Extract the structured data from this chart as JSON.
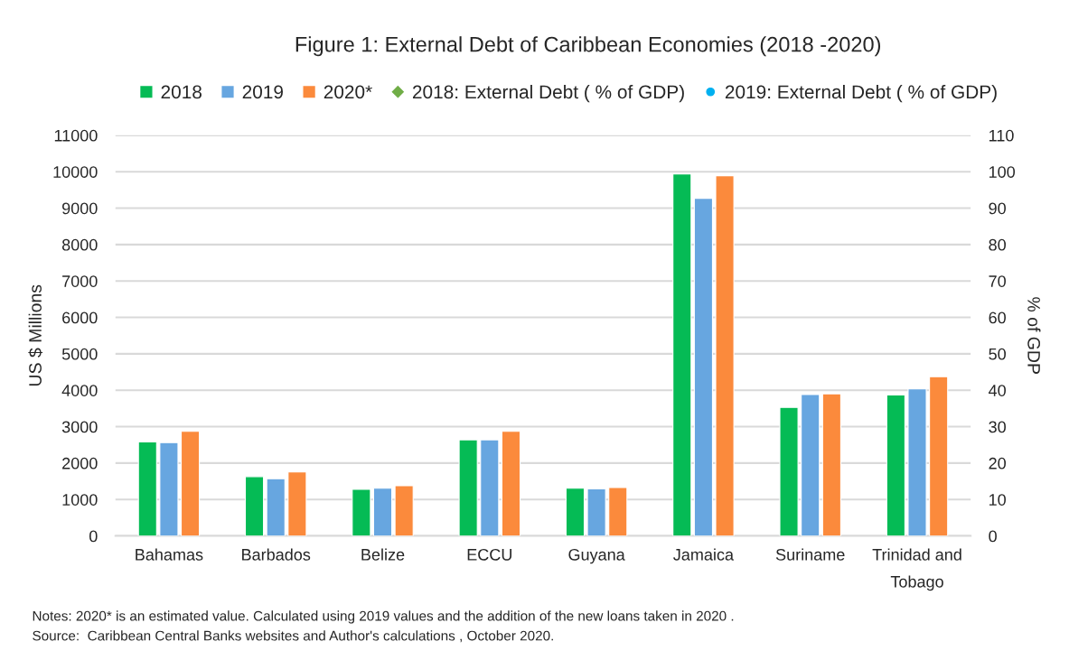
{
  "chart_data": {
    "type": "bar",
    "title": "Figure 1: External Debt of Caribbean Economies (2018 -2020)",
    "categories": [
      "Bahamas",
      "Barbados",
      "Belize",
      "ECCU",
      "Guyana",
      "Jamaica",
      "Suriname",
      "Trinidad and\nTobago"
    ],
    "series": [
      {
        "name": "2018",
        "color": "#05bb55",
        "values": [
          2580,
          1630,
          1280,
          2640,
          1310,
          9940,
          3530,
          3870
        ]
      },
      {
        "name": "2019",
        "color": "#67a6e0",
        "values": [
          2560,
          1570,
          1310,
          2640,
          1290,
          9270,
          3880,
          4040
        ]
      },
      {
        "name": "2020*",
        "color": "#fb8a3c",
        "values": [
          2870,
          1760,
          1380,
          2870,
          1330,
          9890,
          3900,
          4370
        ]
      },
      {
        "name": "2018: External Debt ( % of GDP)",
        "type": "scatter",
        "marker": "diamond",
        "color": "#70ad47",
        "values": [
          null,
          null,
          null,
          null,
          null,
          null,
          null,
          null
        ]
      },
      {
        "name": "2019: External Debt ( % of GDP)",
        "type": "scatter",
        "marker": "circle",
        "color": "#00b0f0",
        "values": [
          null,
          null,
          null,
          null,
          null,
          null,
          null,
          null
        ]
      }
    ],
    "ylabel": "US $ Millions",
    "y2label": "% of GDP",
    "ylim": [
      0,
      11000
    ],
    "yticks": [
      0,
      1000,
      2000,
      3000,
      4000,
      5000,
      6000,
      7000,
      8000,
      9000,
      10000,
      11000
    ],
    "y2lim": [
      0,
      110
    ],
    "y2ticks": [
      0,
      10,
      20,
      30,
      40,
      50,
      60,
      70,
      80,
      90,
      100,
      110
    ],
    "grid": "y",
    "legend": "top",
    "annotations": [
      "Notes: 2020* is an estimated value. Calculated using 2019 values and the addition of the new loans taken in 2020 .",
      "Source:  Caribbean Central Banks websites and Author's calculations , October 2020."
    ]
  }
}
